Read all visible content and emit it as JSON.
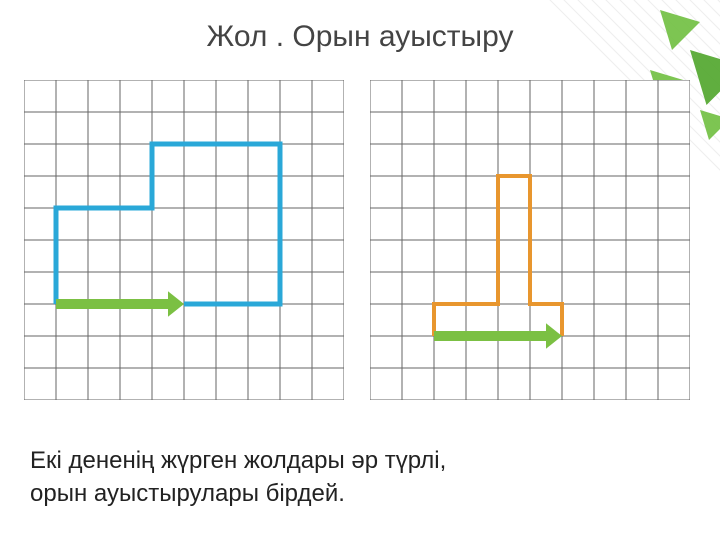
{
  "title": "Жол . Орын ауыстыру",
  "caption_line1": "Екі дененің жүрген жолдары әр түрлі,",
  "caption_line2": "орын ауыстырулары бірдей.",
  "grid": {
    "cols": 10,
    "rows": 10,
    "cell": 32,
    "stroke": "#666666",
    "stroke_width": 1,
    "background": "#ffffff"
  },
  "left_panel": {
    "path": {
      "points": [
        [
          1,
          7
        ],
        [
          1,
          4
        ],
        [
          4,
          4
        ],
        [
          4,
          2
        ],
        [
          8,
          2
        ],
        [
          8,
          7
        ],
        [
          5,
          7
        ]
      ],
      "stroke": "#2aa8d8",
      "stroke_width": 5
    },
    "arrow": {
      "from": [
        1,
        7
      ],
      "to": [
        5,
        7
      ],
      "stroke": "#7bc043",
      "stroke_width": 10,
      "head_size": 16
    }
  },
  "right_panel": {
    "path": {
      "points": [
        [
          2,
          8
        ],
        [
          2,
          7
        ],
        [
          4,
          7
        ],
        [
          4,
          3
        ],
        [
          5,
          3
        ],
        [
          5,
          7
        ],
        [
          6,
          7
        ],
        [
          6,
          8
        ]
      ],
      "stroke": "#e8962e",
      "stroke_width": 4
    },
    "arrow": {
      "from": [
        2,
        8
      ],
      "to": [
        6,
        8
      ],
      "stroke": "#7bc043",
      "stroke_width": 10,
      "head_size": 16
    }
  },
  "decor": {
    "leaf_fill": "#6fbf3f",
    "leaf_fill_dark": "#4fa52a",
    "leaf_alpha": 0.9,
    "line_stroke": "#cfcfcf",
    "line_alpha": 0.35
  }
}
